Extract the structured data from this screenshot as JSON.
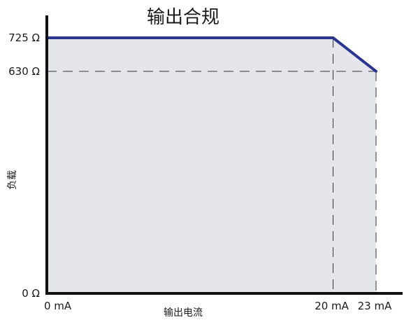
{
  "chart_data": {
    "type": "area",
    "title": "输出合规",
    "xlabel": "输出电流",
    "ylabel": "负载",
    "x_unit": "mA",
    "y_unit": "Ω",
    "xlim": [
      0,
      23
    ],
    "ylim": [
      0,
      725
    ],
    "x_ticks": [
      {
        "value": 0,
        "label": "0 mA"
      },
      {
        "value": 20,
        "label": "20 mA"
      },
      {
        "value": 23,
        "label": "23 mA"
      }
    ],
    "y_ticks": [
      {
        "value": 0,
        "label": "0 Ω"
      },
      {
        "value": 630,
        "label": "630 Ω"
      },
      {
        "value": 725,
        "label": "725 Ω"
      }
    ],
    "series": [
      {
        "x": [
          0,
          20,
          23
        ],
        "y": [
          725,
          725,
          630
        ]
      }
    ],
    "reference_lines": [
      {
        "axis": "y",
        "value": 630
      },
      {
        "axis": "x",
        "value": 20
      },
      {
        "axis": "x",
        "value": 23
      }
    ],
    "grid": false,
    "colors": {
      "line": "#2b3590",
      "fill": "#e4e6ec",
      "axis": "#111111",
      "dash": "#333333"
    }
  }
}
